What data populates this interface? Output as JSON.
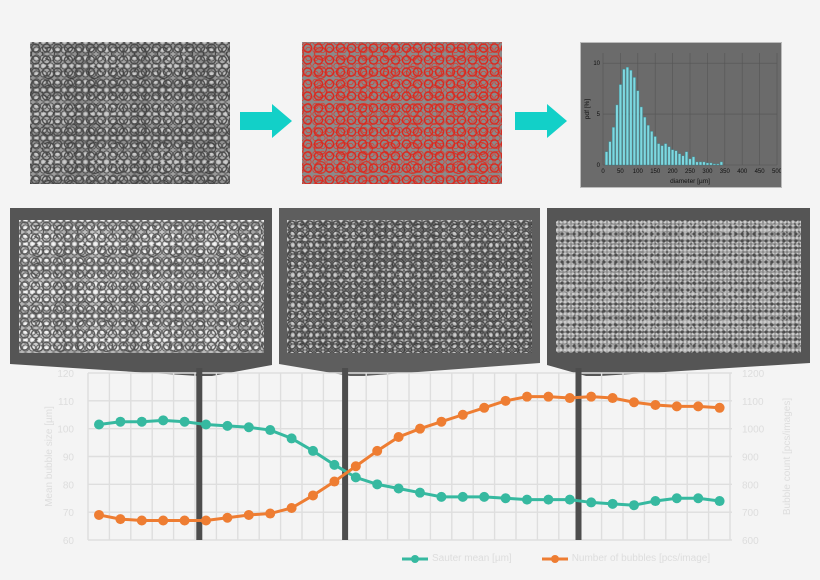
{
  "histogram": {
    "type": "bar",
    "xlabel": "diameter [µm]",
    "ylabel": "pdf [%]",
    "xticks": [
      "0",
      "50",
      "100",
      "150",
      "200",
      "250",
      "300",
      "350",
      "400",
      "450",
      "500"
    ],
    "yticks": [
      "0",
      "5",
      "10"
    ],
    "xlim": [
      0,
      500
    ],
    "ylim": [
      0,
      11
    ],
    "bin_centers": [
      10,
      20,
      30,
      40,
      50,
      60,
      70,
      80,
      90,
      100,
      110,
      120,
      130,
      140,
      150,
      160,
      170,
      180,
      190,
      200,
      210,
      220,
      230,
      240,
      250,
      260,
      270,
      280,
      290,
      300,
      310,
      320,
      330,
      340
    ],
    "values": [
      1.3,
      2.3,
      3.7,
      5.9,
      7.9,
      9.4,
      9.6,
      9.3,
      8.6,
      7.3,
      5.7,
      4.7,
      3.9,
      3.3,
      2.8,
      2.1,
      1.9,
      2.1,
      1.8,
      1.5,
      1.4,
      1.1,
      0.9,
      1.3,
      0.6,
      0.8,
      0.3,
      0.3,
      0.3,
      0.2,
      0.2,
      0.1,
      0.1,
      0.3
    ],
    "bar_color": "#7fd8e0"
  },
  "colors": {
    "arrow": "#12d0c8",
    "sauter": "#36b9a0",
    "count": "#ee7d32",
    "panel": "#555555"
  },
  "chart_data": {
    "type": "line",
    "title": "",
    "ylabel_left": "Mean bubble size [µm]",
    "ylabel_right": "Bubble count [pcs/images]",
    "ylim_left": [
      60,
      120
    ],
    "ylim_right": [
      600,
      1200
    ],
    "yticks_left": [
      "60",
      "70",
      "80",
      "90",
      "100",
      "110",
      "120"
    ],
    "yticks_right": [
      "600",
      "700",
      "800",
      "900",
      "1000",
      "1100",
      "1200"
    ],
    "x": [
      1,
      2,
      3,
      4,
      5,
      6,
      7,
      8,
      9,
      10,
      11,
      12,
      13,
      14,
      15,
      16,
      17,
      18,
      19,
      20,
      21,
      22,
      23,
      24,
      25,
      26,
      27,
      28,
      29,
      30
    ],
    "series": [
      {
        "name": "Sauter mean [µm]",
        "axis": "left",
        "values": [
          101.5,
          102.5,
          102.5,
          103,
          102.5,
          101.5,
          101,
          100.5,
          99.5,
          96.5,
          92,
          87,
          82.5,
          80,
          78.5,
          77,
          75.5,
          75.5,
          75.5,
          75,
          74.5,
          74.5,
          74.5,
          73.5,
          73,
          72.5,
          74,
          75,
          75,
          74
        ]
      },
      {
        "name": "Number of bubbles [pcs/image]",
        "axis": "right",
        "values": [
          690,
          675,
          670,
          670,
          670,
          670,
          680,
          690,
          695,
          715,
          760,
          810,
          865,
          920,
          970,
          1000,
          1025,
          1050,
          1075,
          1100,
          1115,
          1115,
          1110,
          1115,
          1110,
          1095,
          1085,
          1080,
          1080,
          1075
        ]
      }
    ],
    "markers_at_x": [
      6,
      13,
      24
    ],
    "grid": true,
    "legend": "bottom"
  }
}
